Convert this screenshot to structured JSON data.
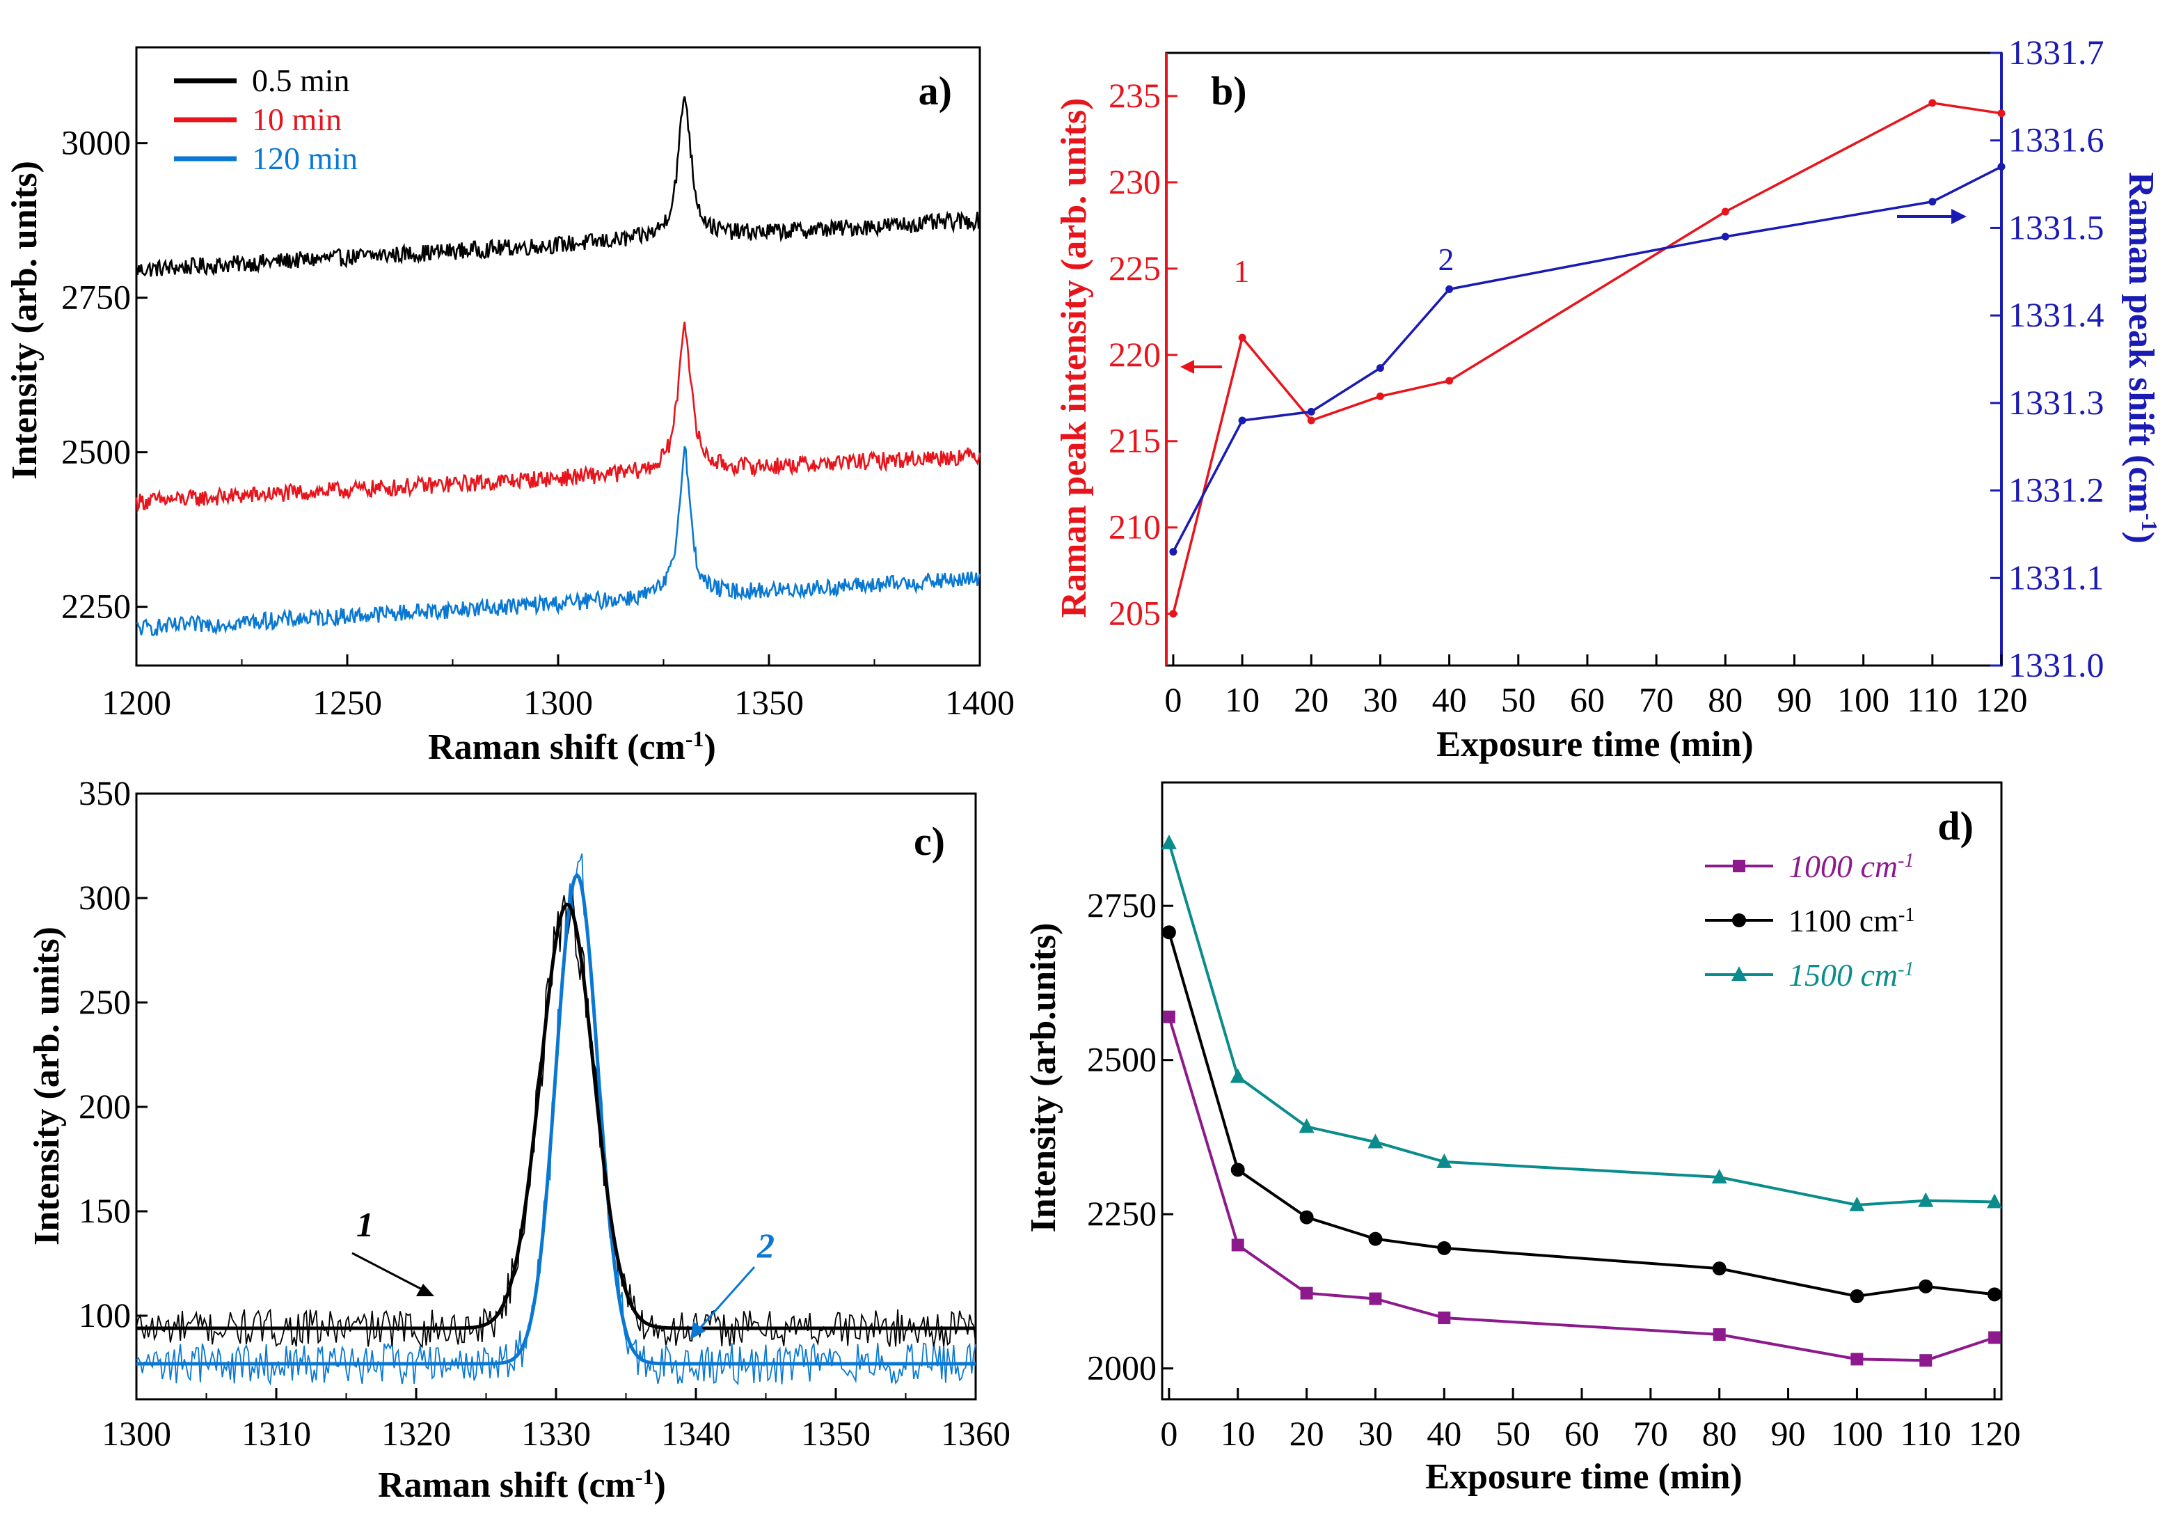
{
  "chart_data": [
    {
      "panel": "a)",
      "type": "line",
      "xlabel": "Raman shift (cm",
      "xlabel_sup": "-1",
      "ylabel": "Intensity (arb. units)",
      "xlim": [
        1200,
        1400
      ],
      "ylim": [
        2155,
        3155
      ],
      "xticks": [
        1200,
        1250,
        1300,
        1350,
        1400
      ],
      "yticks": [
        2250,
        2500,
        2750,
        3000
      ],
      "series": [
        {
          "name": "0.5 min",
          "color": "#000000",
          "base_start": 2795,
          "base_end": 2875,
          "peak_center": 1330,
          "peak_height": 228,
          "peak_width": 1.8,
          "noise": 14
        },
        {
          "name": "10 min",
          "color": "#e8141c",
          "base_start": 2420,
          "base_end": 2495,
          "peak_center": 1330,
          "peak_height": 240,
          "peak_width": 1.8,
          "noise": 14
        },
        {
          "name": "120 min",
          "color": "#0a78d2",
          "base_start": 2215,
          "base_end": 2295,
          "peak_center": 1330,
          "peak_height": 238,
          "peak_width": 1.6,
          "noise": 14
        }
      ]
    },
    {
      "panel": "b)",
      "type": "line",
      "xlabel": "Exposure time (min)",
      "ylabel_left": "Raman peak intensity (arb. units)",
      "ylabel_right": "Raman peak shift (cm",
      "ylabel_right_sup": "-1",
      "xlim": [
        -1,
        120
      ],
      "ylim_left": [
        202,
        237.5
      ],
      "ylim_right": [
        1331.0,
        1331.7
      ],
      "xticks": [
        0,
        10,
        20,
        30,
        40,
        50,
        60,
        70,
        80,
        90,
        100,
        110,
        120
      ],
      "yticks_left": [
        205,
        210,
        215,
        220,
        225,
        230,
        235
      ],
      "yticks_right": [
        "1331.0",
        "1331.1",
        "1331.2",
        "1331.3",
        "1331.4",
        "1331.5",
        "1331.6",
        "1331.7"
      ],
      "series": [
        {
          "name": "1",
          "axis": "left",
          "color": "#e8141c",
          "x": [
            0,
            10,
            20,
            30,
            40,
            80,
            110,
            120
          ],
          "y": [
            205,
            221,
            216.2,
            217.6,
            218.5,
            228.3,
            234.6,
            234
          ]
        },
        {
          "name": "2",
          "axis": "right",
          "color": "#1a1ab4",
          "x": [
            0,
            10,
            20,
            30,
            40,
            80,
            110,
            120
          ],
          "y": [
            1331.13,
            1331.28,
            1331.29,
            1331.34,
            1331.43,
            1331.49,
            1331.53,
            1331.57
          ]
        }
      ],
      "annotations": [
        "1",
        "2"
      ]
    },
    {
      "panel": "c)",
      "type": "line",
      "xlabel": "Raman shift (cm",
      "xlabel_sup": "-1",
      "ylabel": "Intensity (arb. units)",
      "xlim": [
        1300,
        1360
      ],
      "ylim": [
        60,
        350
      ],
      "xticks": [
        1300,
        1310,
        1320,
        1330,
        1340,
        1350,
        1360
      ],
      "yticks": [
        100,
        150,
        200,
        250,
        300,
        350
      ],
      "series": [
        {
          "name": "1",
          "color": "#000000",
          "baseline": 94,
          "peak_center": 1330.8,
          "peak_height": 203,
          "peak_width": 1.9,
          "noise": 9
        },
        {
          "name": "2",
          "color": "#0a78d2",
          "baseline": 77,
          "peak_center": 1331.5,
          "peak_height": 234,
          "peak_width": 1.5,
          "noise": 10
        }
      ],
      "annotations": [
        "1",
        "2"
      ]
    },
    {
      "panel": "d)",
      "type": "line",
      "xlabel": "Exposure time (min)",
      "ylabel": "Intensity (arb.units)",
      "xlim": [
        -1,
        121
      ],
      "ylim": [
        1950,
        2950
      ],
      "xticks": [
        0,
        10,
        20,
        30,
        40,
        50,
        60,
        70,
        80,
        90,
        100,
        110,
        120
      ],
      "yticks": [
        2000,
        2250,
        2500,
        2750
      ],
      "series": [
        {
          "name": "1000 cm",
          "sup": "-1",
          "color": "#8c1a8c",
          "marker": "square",
          "x": [
            0,
            10,
            20,
            30,
            40,
            80,
            100,
            110,
            120
          ],
          "y": [
            2570,
            2200,
            2122,
            2113,
            2082,
            2055,
            2015,
            2013,
            2050
          ]
        },
        {
          "name": "1100 cm",
          "sup": "-1",
          "color": "#000000",
          "marker": "circle",
          "x": [
            0,
            10,
            20,
            30,
            40,
            80,
            100,
            110,
            120
          ],
          "y": [
            2707,
            2322,
            2245,
            2210,
            2195,
            2162,
            2117,
            2133,
            2120
          ]
        },
        {
          "name": "1500 cm",
          "sup": "-1",
          "color": "#0a8c8c",
          "marker": "triangle",
          "x": [
            0,
            10,
            20,
            30,
            40,
            80,
            100,
            110,
            120
          ],
          "y": [
            2852,
            2473,
            2392,
            2367,
            2335,
            2310,
            2265,
            2272,
            2270
          ]
        }
      ]
    }
  ]
}
